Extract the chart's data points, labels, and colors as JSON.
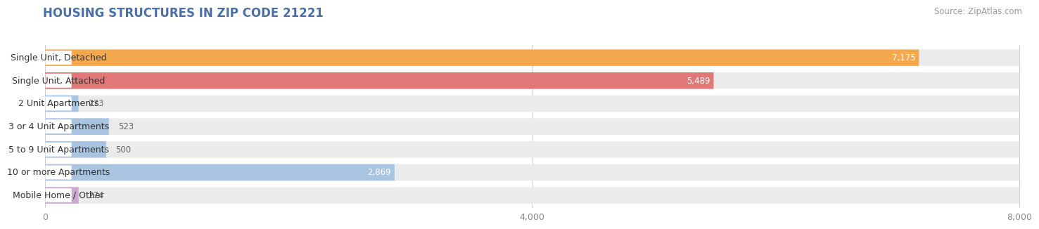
{
  "title": "HOUSING STRUCTURES IN ZIP CODE 21221",
  "source": "Source: ZipAtlas.com",
  "categories": [
    "Single Unit, Detached",
    "Single Unit, Attached",
    "2 Unit Apartments",
    "3 or 4 Unit Apartments",
    "5 to 9 Unit Apartments",
    "10 or more Apartments",
    "Mobile Home / Other"
  ],
  "values": [
    7175,
    5489,
    273,
    523,
    500,
    2869,
    274
  ],
  "bar_colors": [
    "#F5A94E",
    "#E07878",
    "#A8C4E0",
    "#A8C4E0",
    "#A8C4E0",
    "#A8C4E0",
    "#C9AACE"
  ],
  "bar_bg_color": "#EBEBEB",
  "row_bg_color": "#F5F5F5",
  "xlim": [
    0,
    8000
  ],
  "xticks": [
    0,
    4000,
    8000
  ],
  "title_fontsize": 12,
  "source_fontsize": 8.5,
  "label_fontsize": 9,
  "value_fontsize": 8.5,
  "background_color": "#FFFFFF",
  "bar_height": 0.72,
  "title_color": "#4a6fa5",
  "label_color": "#333333",
  "value_color_inside": "#FFFFFF",
  "value_color_outside": "#666666",
  "tick_color": "#888888"
}
